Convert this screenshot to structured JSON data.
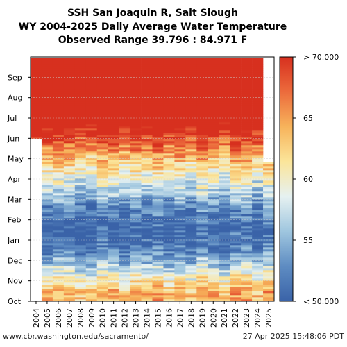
{
  "chart_data": {
    "type": "heatmap",
    "title": [
      "SSH San Joaquin R, Salt Slough",
      "WY 2004-2025 Daily Average Water Temperature",
      "Observed Range 39.796 : 84.971 F"
    ],
    "water_years": [
      "2004",
      "2005",
      "2006",
      "2007",
      "2008",
      "2009",
      "2010",
      "2011",
      "2012",
      "2013",
      "2014",
      "2015",
      "2016",
      "2017",
      "2018",
      "2019",
      "2020",
      "2021",
      "2022",
      "2023",
      "2024",
      "2025"
    ],
    "months": [
      "Oct",
      "Nov",
      "Dec",
      "Jan",
      "Feb",
      "Mar",
      "Apr",
      "May",
      "Jun",
      "Jul",
      "Aug",
      "Sep"
    ],
    "colorbar": {
      "min": 50,
      "max": 70,
      "ticks": [
        {
          "value": 70,
          "label": "> 70.000"
        },
        {
          "value": 65,
          "label": "65"
        },
        {
          "value": 60,
          "label": "60"
        },
        {
          "value": 55,
          "label": "55"
        },
        {
          "value": 50,
          "label": "< 50.000"
        }
      ],
      "colors": [
        "#3a63a8",
        "#5e8cc2",
        "#9fc6df",
        "#e6f1f1",
        "#fbe59a",
        "#f7b35b",
        "#ec6b3c",
        "#d7301f"
      ]
    },
    "monthly_approx_temperature_F": {
      "Oct": 64,
      "Nov": 58,
      "Dec": 52,
      "Jan": 50,
      "Feb": 52,
      "Mar": 57,
      "Apr": 61,
      "May": 66,
      "Jun": 72,
      "Jul": 76,
      "Aug": 76,
      "Sep": 74
    },
    "missing_data": [
      "2004 Oct-May",
      "2025 after Apr"
    ],
    "grid": true
  },
  "footer": {
    "source": "www.cbr.washington.edu/sacramento/",
    "timestamp": "27 Apr 2025 15:48:06 PDT"
  }
}
